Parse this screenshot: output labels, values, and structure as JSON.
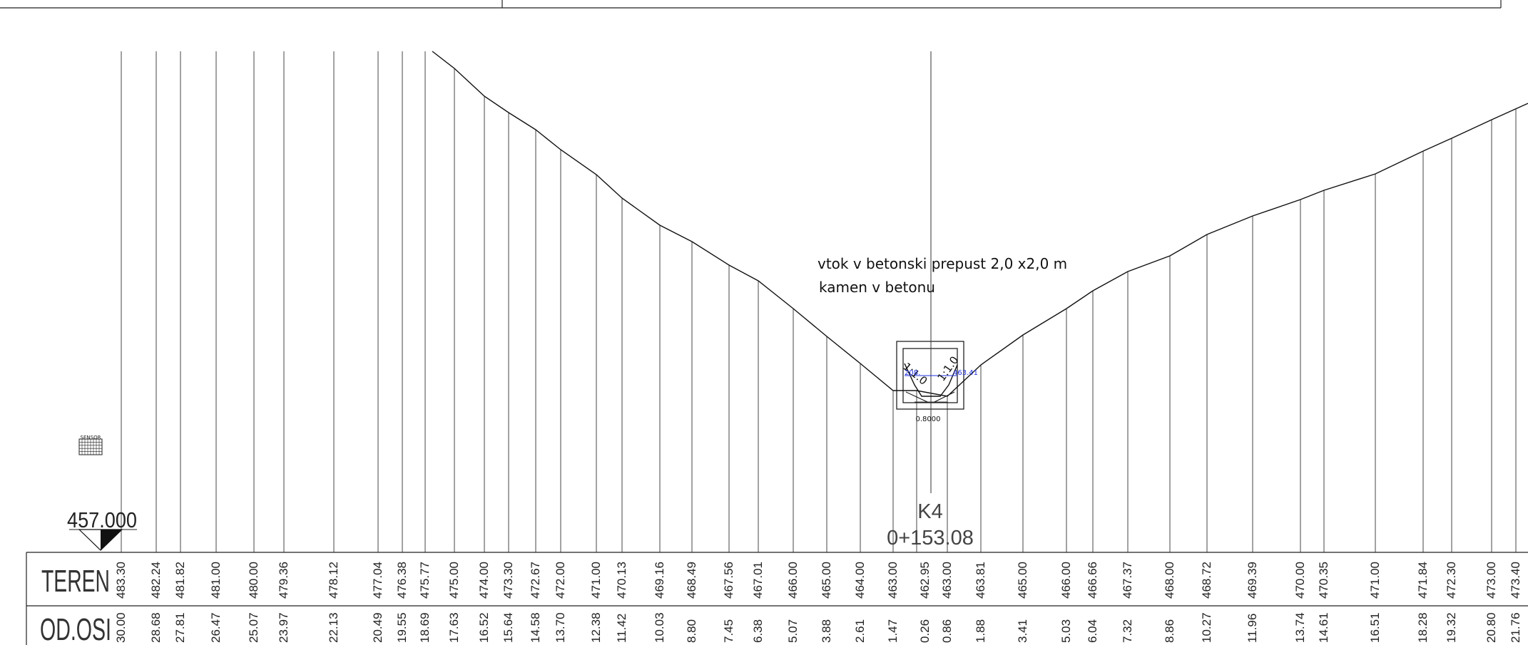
{
  "annotations": {
    "inflow_line1": "vtok v betonski prepust 2,0 x2,0 m",
    "inflow_line2": "kamen v betonu",
    "slope_left": "1:1.0",
    "slope_right": "1:1.0",
    "pipe_level_a": "208.",
    "pipe_level_b": "463.41",
    "pipe_dim": "0.8000",
    "sensor_label": "SENSOR"
  },
  "datum": {
    "value": "457.000"
  },
  "station": {
    "name": "K4",
    "chainage": "0+153.08"
  },
  "table": {
    "row1_label": "TEREN",
    "row2_label": "OD.OSI",
    "teren": [
      "483.30",
      "482.24",
      "481.82",
      "481.00",
      "480.00",
      "479.36",
      "478.12",
      "477.04",
      "476.38",
      "475.77",
      "475.00",
      "474.00",
      "473.30",
      "472.67",
      "472.00",
      "471.00",
      "470.13",
      "469.16",
      "468.49",
      "467.56",
      "467.01",
      "466.00",
      "465.00",
      "464.00",
      "463.00",
      "462.95",
      "463.00",
      "463.81",
      "465.00",
      "466.00",
      "466.66",
      "467.37",
      "468.00",
      "468.72",
      "469.39",
      "470.00",
      "470.35",
      "471.00",
      "471.84",
      "472.30",
      "473.00",
      "473.40"
    ],
    "od_osi": [
      "30.00",
      "28.68",
      "27.81",
      "26.47",
      "25.07",
      "23.97",
      "22.13",
      "20.49",
      "19.55",
      "18.69",
      "17.63",
      "16.52",
      "15.64",
      "14.58",
      "13.70",
      "12.38",
      "11.42",
      "10.03",
      "8.80",
      "7.45",
      "6.38",
      "5.07",
      "3.88",
      "2.61",
      "1.47",
      "0.26",
      "0.86",
      "1.88",
      "3.41",
      "5.03",
      "6.04",
      "7.32",
      "8.86",
      "10.27",
      "11.96",
      "13.74",
      "14.61",
      "16.51",
      "18.28",
      "19.32",
      "20.80",
      "21.76"
    ]
  }
}
